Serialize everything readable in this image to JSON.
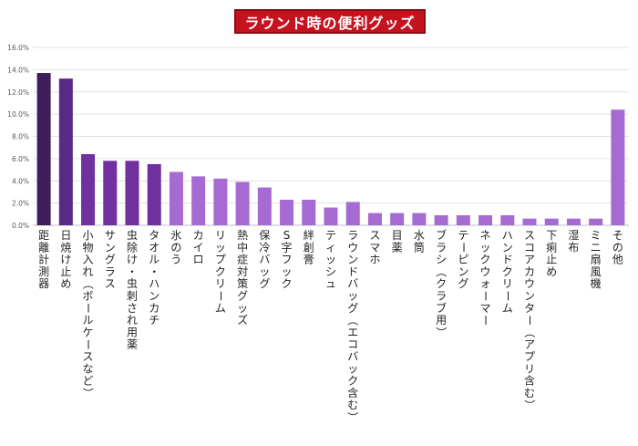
{
  "chart_data": {
    "type": "bar",
    "title": "ラウンド時の便利グッズ",
    "xlabel": "",
    "ylabel": "",
    "ylim": [
      0,
      16
    ],
    "yticks": [
      "0.0%",
      "2.0%",
      "4.0%",
      "6.0%",
      "8.0%",
      "10.0%",
      "12.0%",
      "14.0%",
      "16.0%"
    ],
    "grid": true,
    "categories": [
      "距離計測器",
      "日焼け止め",
      "小物入れ（ボールケースなど）",
      "サングラス",
      "虫除け・虫刺され用薬",
      "タオル・ハンカチ",
      "氷のう",
      "カイロ",
      "リップクリーム",
      "熱中症対策グッズ",
      "保冷バッグ",
      "S字フック",
      "絆創膏",
      "ティッシュ",
      "ラウンドバッグ（エコバック含む）",
      "スマホ",
      "目薬",
      "水筒",
      "ブラシ（クラブ用）",
      "テーピング",
      "ネックウォーマー",
      "ハンドクリーム",
      "スコアカウンター（アプリ含む）",
      "下痢止め",
      "湿布",
      "ミニ扇風機",
      "その他"
    ],
    "values": [
      13.7,
      13.2,
      6.4,
      5.8,
      5.8,
      5.5,
      4.8,
      4.4,
      4.2,
      3.9,
      3.4,
      2.3,
      2.3,
      1.6,
      2.1,
      1.1,
      1.1,
      1.1,
      0.9,
      0.9,
      0.9,
      0.9,
      0.6,
      0.6,
      0.6,
      0.6,
      10.4
    ],
    "colors": {
      "top": "#3f1c5c",
      "high": "#7030a0",
      "rest": "#a66bd3",
      "grid": "#e0e0e0",
      "axis": "#bfbfbf",
      "tick_text": "#595959"
    }
  }
}
